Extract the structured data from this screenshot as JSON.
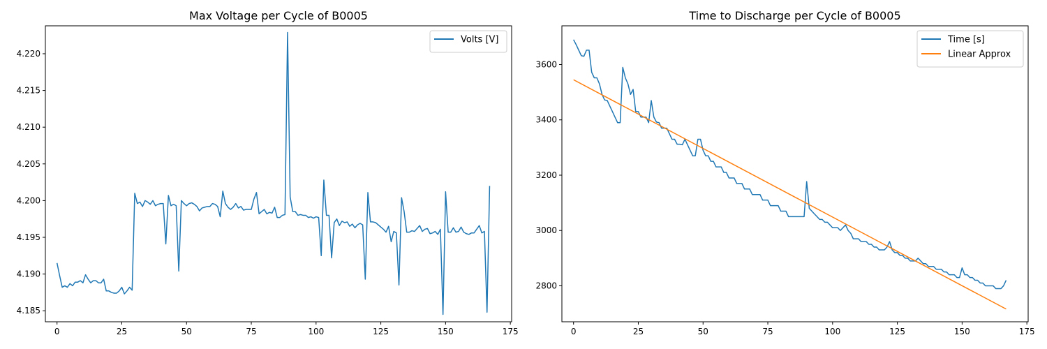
{
  "chart_data": [
    {
      "type": "line",
      "title": "Max Voltage per Cycle of B0005",
      "xlabel": "",
      "ylabel": "",
      "xlim": [
        -4.5,
        175.5
      ],
      "ylim": [
        4.1835,
        4.2238
      ],
      "xticks": [
        0,
        25,
        50,
        75,
        100,
        125,
        150,
        175
      ],
      "xtick_labels": [
        "0",
        "25",
        "50",
        "75",
        "100",
        "125",
        "150",
        "175"
      ],
      "yticks": [
        4.185,
        4.19,
        4.195,
        4.2,
        4.205,
        4.21,
        4.215,
        4.22
      ],
      "ytick_labels": [
        "4.185",
        "4.190",
        "4.195",
        "4.200",
        "4.205",
        "4.210",
        "4.215",
        "4.220"
      ],
      "grid": false,
      "legend_position": "top-right",
      "series": [
        {
          "name": "Volts [V]",
          "color": "#1f77b4",
          "x": [
            0,
            1,
            2,
            3,
            4,
            5,
            6,
            7,
            8,
            9,
            10,
            11,
            12,
            13,
            14,
            15,
            16,
            17,
            18,
            19,
            20,
            21,
            22,
            23,
            24,
            25,
            26,
            27,
            28,
            29,
            30,
            31,
            32,
            33,
            34,
            35,
            36,
            37,
            38,
            39,
            40,
            41,
            42,
            43,
            44,
            45,
            46,
            47,
            48,
            49,
            50,
            51,
            52,
            53,
            54,
            55,
            56,
            57,
            58,
            59,
            60,
            61,
            62,
            63,
            64,
            65,
            66,
            67,
            68,
            69,
            70,
            71,
            72,
            73,
            74,
            75,
            76,
            77,
            78,
            79,
            80,
            81,
            82,
            83,
            84,
            85,
            86,
            87,
            88,
            89,
            90,
            91,
            92,
            93,
            94,
            95,
            96,
            97,
            98,
            99,
            100,
            101,
            102,
            103,
            104,
            105,
            106,
            107,
            108,
            109,
            110,
            111,
            112,
            113,
            114,
            115,
            116,
            117,
            118,
            119,
            120,
            121,
            122,
            123,
            124,
            125,
            126,
            127,
            128,
            129,
            130,
            131,
            132,
            133,
            134,
            135,
            136,
            137,
            138,
            139,
            140,
            141,
            142,
            143,
            144,
            145,
            146,
            147,
            148,
            149,
            150,
            151,
            152,
            153,
            154,
            155,
            156,
            157,
            158,
            159,
            160,
            161,
            162,
            163,
            164,
            165,
            166,
            167
          ],
          "y": [
            4.1915,
            4.1898,
            4.1882,
            4.1884,
            4.1882,
            4.1887,
            4.1884,
            4.1889,
            4.1889,
            4.1891,
            4.1888,
            4.1899,
            4.1893,
            4.1888,
            4.1891,
            4.1891,
            4.1888,
            4.1888,
            4.1893,
            4.1877,
            4.1877,
            4.1875,
            4.1874,
            4.1874,
            4.1877,
            4.1882,
            4.1873,
            4.1877,
            4.1882,
            4.1878,
            4.201,
            4.1996,
            4.1998,
            4.1992,
            4.2,
            4.1998,
            4.1995,
            4.2,
            4.1993,
            4.1995,
            4.1996,
            4.1996,
            4.1941,
            4.2007,
            4.1993,
            4.1995,
            4.1993,
            4.1904,
            4.2,
            4.1996,
            4.1993,
            4.1996,
            4.1997,
            4.1995,
            4.1992,
            4.1986,
            4.199,
            4.1991,
            4.1992,
            4.1992,
            4.1996,
            4.1995,
            4.1992,
            4.1978,
            4.2013,
            4.1996,
            4.1991,
            4.1988,
            4.1991,
            4.1996,
            4.199,
            4.1992,
            4.1987,
            4.1988,
            4.1988,
            4.1988,
            4.2002,
            4.2011,
            4.1982,
            4.1985,
            4.1988,
            4.1982,
            4.1984,
            4.1983,
            4.1991,
            4.1977,
            4.1977,
            4.198,
            4.1981,
            4.2229,
            4.2005,
            4.1985,
            4.1985,
            4.198,
            4.1981,
            4.198,
            4.198,
            4.1977,
            4.1978,
            4.1976,
            4.1978,
            4.1977,
            4.1925,
            4.2028,
            4.198,
            4.198,
            4.1922,
            4.197,
            4.1975,
            4.1966,
            4.1972,
            4.197,
            4.1971,
            4.1965,
            4.1968,
            4.1963,
            4.1967,
            4.1969,
            4.1967,
            4.1893,
            4.2011,
            4.1971,
            4.1971,
            4.197,
            4.1967,
            4.1964,
            4.1961,
            4.1957,
            4.1965,
            4.1944,
            4.1958,
            4.1956,
            4.1885,
            4.2004,
            4.1985,
            4.1957,
            4.1957,
            4.1959,
            4.1958,
            4.1962,
            4.1966,
            4.1958,
            4.1961,
            4.1962,
            4.1955,
            4.1956,
            4.1958,
            4.1954,
            4.1961,
            4.1845,
            4.2012,
            4.1957,
            4.1957,
            4.1963,
            4.1957,
            4.1958,
            4.1964,
            4.1957,
            4.1955,
            4.1954,
            4.1956,
            4.1956,
            4.1961,
            4.1966,
            4.1956,
            4.1958,
            4.1848,
            4.202
          ]
        }
      ]
    },
    {
      "type": "line",
      "title": "Time to Discharge per Cycle of B0005",
      "xlabel": "",
      "ylabel": "",
      "xlim": [
        -4.5,
        175.5
      ],
      "ylim": [
        2670,
        3740
      ],
      "xticks": [
        0,
        25,
        50,
        75,
        100,
        125,
        150,
        175
      ],
      "xtick_labels": [
        "0",
        "25",
        "50",
        "75",
        "100",
        "125",
        "150",
        "175"
      ],
      "yticks": [
        2800,
        3000,
        3200,
        3400,
        3600
      ],
      "ytick_labels": [
        "2800",
        "3000",
        "3200",
        "3400",
        "3600"
      ],
      "grid": false,
      "legend_position": "top-right",
      "series": [
        {
          "name": "Time [s]",
          "color": "#1f77b4",
          "x": [
            0,
            1,
            2,
            3,
            4,
            5,
            6,
            7,
            8,
            9,
            10,
            11,
            12,
            13,
            14,
            15,
            16,
            17,
            18,
            19,
            20,
            21,
            22,
            23,
            24,
            25,
            26,
            27,
            28,
            29,
            30,
            31,
            32,
            33,
            34,
            35,
            36,
            37,
            38,
            39,
            40,
            41,
            42,
            43,
            44,
            45,
            46,
            47,
            48,
            49,
            50,
            51,
            52,
            53,
            54,
            55,
            56,
            57,
            58,
            59,
            60,
            61,
            62,
            63,
            64,
            65,
            66,
            67,
            68,
            69,
            70,
            71,
            72,
            73,
            74,
            75,
            76,
            77,
            78,
            79,
            80,
            81,
            82,
            83,
            84,
            85,
            86,
            87,
            88,
            89,
            90,
            91,
            92,
            93,
            94,
            95,
            96,
            97,
            98,
            99,
            100,
            101,
            102,
            103,
            104,
            105,
            106,
            107,
            108,
            109,
            110,
            111,
            112,
            113,
            114,
            115,
            116,
            117,
            118,
            119,
            120,
            121,
            122,
            123,
            124,
            125,
            126,
            127,
            128,
            129,
            130,
            131,
            132,
            133,
            134,
            135,
            136,
            137,
            138,
            139,
            140,
            141,
            142,
            143,
            144,
            145,
            146,
            147,
            148,
            149,
            150,
            151,
            152,
            153,
            154,
            155,
            156,
            157,
            158,
            159,
            160,
            161,
            162,
            163,
            164,
            165,
            166,
            167
          ],
          "y": [
            3690,
            3672,
            3652,
            3632,
            3630,
            3652,
            3652,
            3572,
            3552,
            3552,
            3530,
            3492,
            3472,
            3470,
            3450,
            3430,
            3410,
            3390,
            3390,
            3590,
            3552,
            3530,
            3492,
            3510,
            3430,
            3430,
            3410,
            3410,
            3410,
            3390,
            3470,
            3410,
            3392,
            3390,
            3370,
            3370,
            3370,
            3350,
            3330,
            3330,
            3312,
            3312,
            3310,
            3330,
            3310,
            3290,
            3270,
            3270,
            3330,
            3330,
            3290,
            3270,
            3270,
            3250,
            3250,
            3230,
            3230,
            3230,
            3210,
            3210,
            3190,
            3190,
            3190,
            3170,
            3170,
            3170,
            3150,
            3150,
            3150,
            3130,
            3130,
            3130,
            3130,
            3110,
            3110,
            3110,
            3090,
            3090,
            3090,
            3090,
            3070,
            3070,
            3070,
            3050,
            3050,
            3050,
            3050,
            3050,
            3050,
            3050,
            3177,
            3080,
            3070,
            3060,
            3050,
            3040,
            3040,
            3030,
            3030,
            3020,
            3010,
            3010,
            3010,
            3000,
            3010,
            3020,
            3000,
            2990,
            2970,
            2970,
            2970,
            2960,
            2960,
            2960,
            2950,
            2950,
            2940,
            2940,
            2930,
            2930,
            2930,
            2940,
            2960,
            2930,
            2920,
            2920,
            2910,
            2910,
            2900,
            2900,
            2890,
            2890,
            2890,
            2900,
            2890,
            2880,
            2880,
            2870,
            2870,
            2870,
            2860,
            2860,
            2860,
            2850,
            2850,
            2840,
            2840,
            2840,
            2830,
            2830,
            2865,
            2840,
            2840,
            2830,
            2830,
            2820,
            2820,
            2810,
            2810,
            2800,
            2800,
            2800,
            2800,
            2790,
            2790,
            2790,
            2800,
            2820
          ]
        },
        {
          "name": "Linear Approx",
          "color": "#ff7f0e",
          "x": [
            0,
            167
          ],
          "y": [
            3545,
            2716
          ]
        }
      ]
    }
  ]
}
